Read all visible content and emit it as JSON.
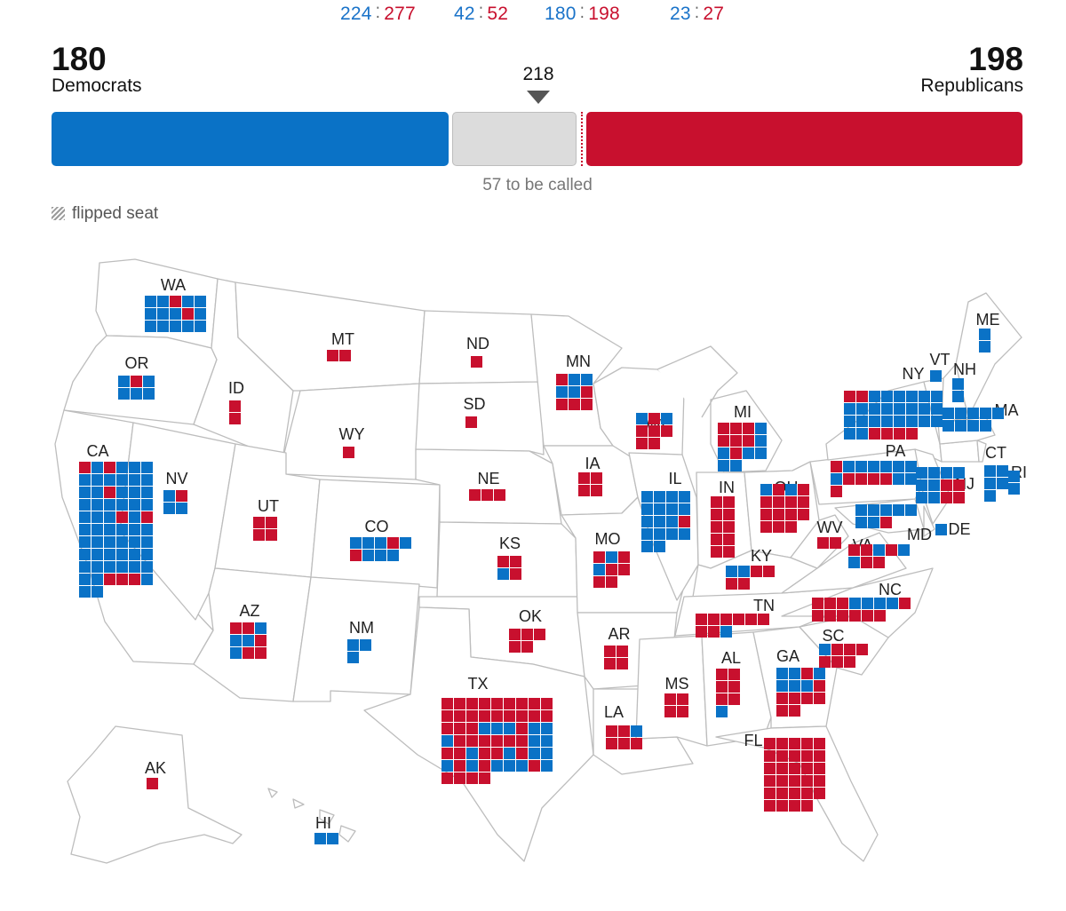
{
  "ratios": [
    {
      "dem": "224",
      "rep": "277"
    },
    {
      "dem": "42",
      "rep": "52"
    },
    {
      "dem": "180",
      "rep": "198"
    },
    {
      "dem": "23",
      "rep": "27"
    }
  ],
  "democrats": {
    "total": "180",
    "label": "Democrats"
  },
  "republicans": {
    "total": "198",
    "label": "Republicans"
  },
  "threshold": "218",
  "uncalled_text": "57 to be called",
  "legend": {
    "flipped_label": "flipped seat"
  },
  "colors": {
    "dem": "#0a72c6",
    "dem_flip": "#7fb6e6",
    "rep": "#c8102e",
    "rep_flip": "#e88a9a",
    "uncalled": "#dcdcdc"
  },
  "states": [
    {
      "abbr": "WA",
      "seats": "DDRDDDDDRDDDDDD"
    },
    {
      "abbr": "OR",
      "seats": "DRDDDD"
    },
    {
      "abbr": "CA",
      "seats": "RDRDDDDDDDDDDDRDDDDDDDDDDDDRDRDDDDDDDDDDDDDDDDDDDDDDDDDDRRRDDD"
    },
    {
      "abbr": "NV",
      "seats": "DRDD"
    },
    {
      "abbr": "ID",
      "seats": "RR"
    },
    {
      "abbr": "MT",
      "seats": "RR"
    },
    {
      "abbr": "WY",
      "seats": "R"
    },
    {
      "abbr": "UT",
      "seats": "RRRR"
    },
    {
      "abbr": "CO",
      "seats": "DDDRDRDDD"
    },
    {
      "abbr": "AZ",
      "seats": "RRDDDRDRR"
    },
    {
      "abbr": "NM",
      "seats": "DDD"
    },
    {
      "abbr": "ND",
      "seats": "R"
    },
    {
      "abbr": "SD",
      "seats": "R"
    },
    {
      "abbr": "NE",
      "seats": "RRR"
    },
    {
      "abbr": "KS",
      "seats": "RRDR"
    },
    {
      "abbr": "OK",
      "seats": "RRRRR"
    },
    {
      "abbr": "TX",
      "seats": "RRRRRRRRRRRRRRRRRRRRRDDDRDDDRRRRRRDDRRDRRDRDDDRDRDDDRDRRRR"
    },
    {
      "abbr": "MN",
      "seats": "RDDDDRRRR"
    },
    {
      "abbr": "IA",
      "seats": "RRRR"
    },
    {
      "abbr": "MO",
      "seats": "RDRDRRRR"
    },
    {
      "abbr": "AR",
      "seats": "RRRR"
    },
    {
      "abbr": "LA",
      "seats": "RRDRRR"
    },
    {
      "abbr": "WI",
      "seats": "DRDRRRRR"
    },
    {
      "abbr": "IL",
      "seats": "DDDDDDDDDDDRDDDDDD"
    },
    {
      "abbr": "MI",
      "seats": "RRRDRRRDDRDDDD"
    },
    {
      "abbr": "IN",
      "seats": "RRRRRRRRRR"
    },
    {
      "abbr": "OH",
      "seats": "DRDRRRRRRRRRRRR"
    },
    {
      "abbr": "KY",
      "seats": "DDRRRR"
    },
    {
      "abbr": "TN",
      "seats": "RRRRRRRRD"
    },
    {
      "abbr": "MS",
      "seats": "RRRR"
    },
    {
      "abbr": "AL",
      "seats": "RRRRRRD"
    },
    {
      "abbr": "GA",
      "seats": "DDRDDDDRRRRRRR"
    },
    {
      "abbr": "FL",
      "seats": "RRRRRRRRRRRRRRRRRRRRRRRRRRRRR"
    },
    {
      "abbr": "SC",
      "seats": "DRRRRRR"
    },
    {
      "abbr": "NC",
      "seats": "RRRDDDDRRRRRRR"
    },
    {
      "abbr": "VA",
      "seats": "RRDRDDRR"
    },
    {
      "abbr": "WV",
      "seats": "RR"
    },
    {
      "abbr": "PA",
      "seats": "RDDDDDDDRRRRDDR"
    },
    {
      "abbr": "NY",
      "seats": "RRDDDDDDDDDDDDDDDDDDDDDDDDRRRR"
    },
    {
      "abbr": "MD",
      "seats": "DDDDDDDR"
    },
    {
      "abbr": "NJ",
      "seats": "DDDDDDRRDDRR"
    },
    {
      "abbr": "DE",
      "seats": "D"
    },
    {
      "abbr": "VT",
      "seats": "D"
    },
    {
      "abbr": "NH",
      "seats": "DD"
    },
    {
      "abbr": "ME",
      "seats": "DD"
    },
    {
      "abbr": "MA",
      "seats": "DDDDDDDDD"
    },
    {
      "abbr": "CT",
      "seats": "DDDDD"
    },
    {
      "abbr": "RI",
      "seats": "DD"
    },
    {
      "abbr": "AK",
      "seats": "R"
    },
    {
      "abbr": "HI",
      "seats": "DD"
    }
  ]
}
